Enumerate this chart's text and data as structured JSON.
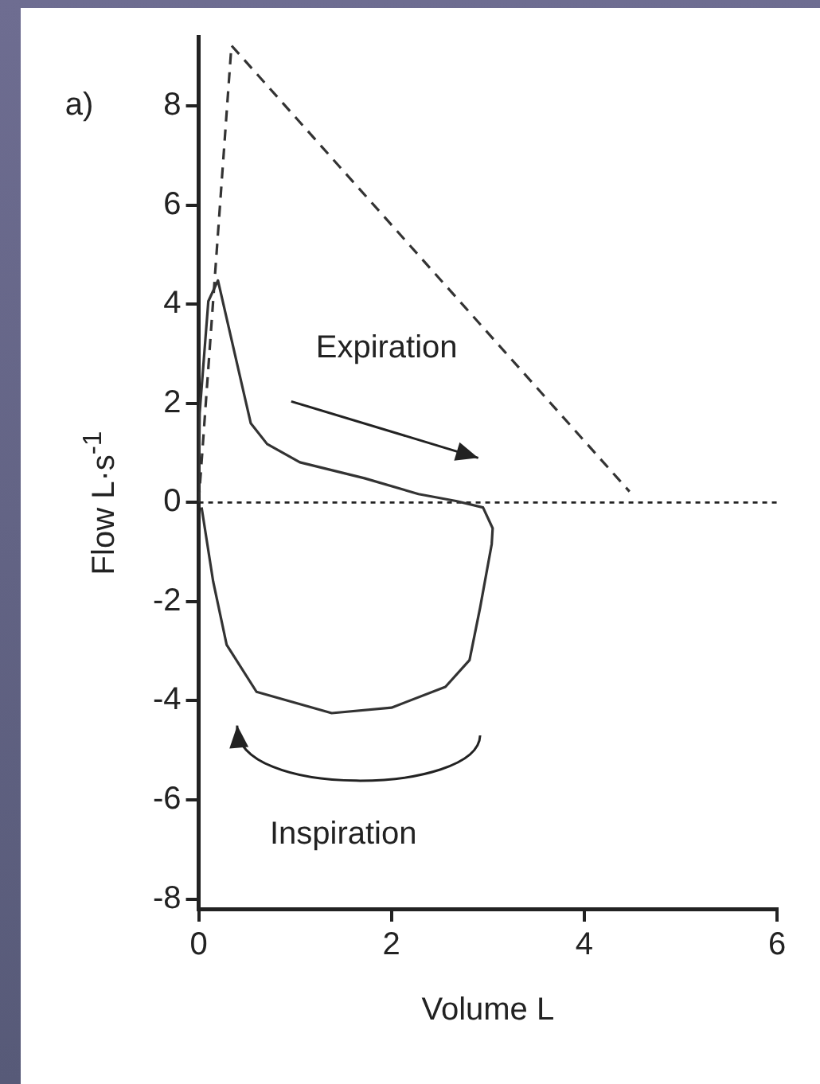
{
  "chart_data": {
    "type": "line",
    "xlabel": "Volume L",
    "ylabel": "Flow L·s$^{-1}$",
    "xlim": [
      0,
      6
    ],
    "xticks": [
      0,
      2,
      4,
      6
    ],
    "ylim": [
      -8.2,
      9.4
    ],
    "yticks": [
      -8,
      -6,
      -4,
      -2,
      0,
      2,
      4,
      6,
      8
    ],
    "grid": false,
    "legend": false,
    "marker": "none",
    "series": [
      {
        "color": "#333333",
        "line_style": "solid",
        "x": [
          0,
          0.01,
          0.1,
          0.2,
          0.54,
          0.71,
          1.05,
          1.72,
          2.28,
          2.67,
          2.95,
          3.05,
          3.04,
          2.92,
          2.81,
          2.56,
          2.0,
          1.38,
          0.6,
          0.29,
          0.15,
          0.03
        ],
        "values": [
          0,
          1.8,
          4.06,
          4.48,
          1.6,
          1.18,
          0.81,
          0.49,
          0.17,
          0.03,
          -0.1,
          -0.52,
          -0.84,
          -2.12,
          -3.18,
          -3.72,
          -4.14,
          -4.25,
          -3.82,
          -2.87,
          -1.59,
          -0.1
        ]
      },
      {
        "color": "#333333",
        "line_style": "dashed",
        "x": [
          0,
          0.34,
          4.47
        ],
        "values": [
          0,
          9.22,
          0.22
        ]
      }
    ],
    "ref_lines": [
      {
        "axis": "y",
        "value": 0,
        "color": "#222222",
        "line_style": "dotted"
      }
    ],
    "annotations": [
      "a)",
      "Expiration",
      "Inspiration"
    ]
  }
}
